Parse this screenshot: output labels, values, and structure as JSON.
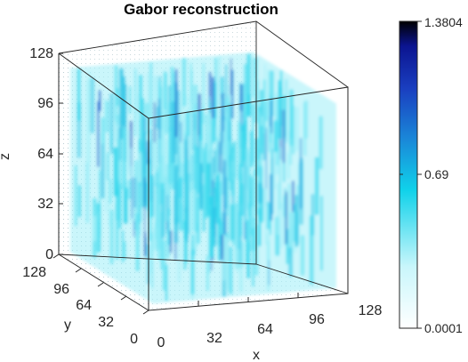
{
  "chart_data": {
    "type": "volume",
    "title": "Gabor reconstruction",
    "xlabel": "x",
    "ylabel": "y",
    "zlabel": "z",
    "xlim": [
      0,
      128
    ],
    "ylim": [
      0,
      128
    ],
    "zlim": [
      0,
      128
    ],
    "xticks": [
      "0",
      "32",
      "64",
      "96",
      "128"
    ],
    "yticks": [
      "0",
      "32",
      "64",
      "96",
      "128"
    ],
    "zticks": [
      "0",
      "32",
      "64",
      "96",
      "128"
    ],
    "colorbar": {
      "min": 0.0001,
      "max": 1.3804,
      "tick_labels": [
        "1.3804",
        "0.69",
        "0.0001"
      ],
      "colormap": [
        "#ffffff",
        "#c9f6fb",
        "#5fe2f2",
        "#10d2ea",
        "#1a86d8",
        "#1a3fc0",
        "#0b1490",
        "#000000"
      ]
    },
    "grid": true,
    "description_colors": {
      "dominant": "#66e3f3",
      "dark_streaks": "#1a3fbf"
    }
  }
}
